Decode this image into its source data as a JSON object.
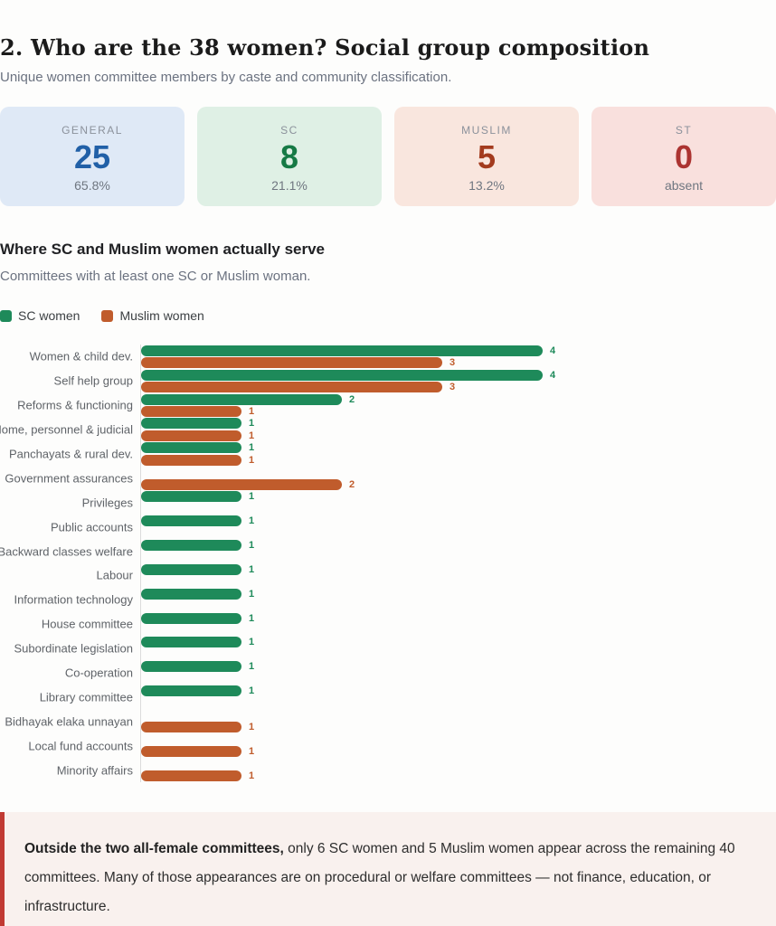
{
  "header": {
    "title": "2. Who are the 38 women? Social group composition",
    "subtitle": "Unique women committee members by caste and community classification."
  },
  "stat_cards": [
    {
      "label": "GENERAL",
      "value": "25",
      "sub": "65.8%",
      "bg": "#dfe9f6",
      "value_color": "#2160a7"
    },
    {
      "label": "SC",
      "value": "8",
      "sub": "21.1%",
      "bg": "#dff0e5",
      "value_color": "#167a45"
    },
    {
      "label": "MUSLIM",
      "value": "5",
      "sub": "13.2%",
      "bg": "#f9e6de",
      "value_color": "#a33b1e"
    },
    {
      "label": "ST",
      "value": "0",
      "sub": "absent",
      "bg": "#f9e0dd",
      "value_color": "#ac3431"
    }
  ],
  "section": {
    "heading": "Where SC and Muslim women actually serve",
    "subheading": "Committees with at least one SC or Muslim woman."
  },
  "chart_data": {
    "type": "bar",
    "orientation": "horizontal",
    "title": "Where SC and Muslim women actually serve",
    "categories": [
      "Women & child dev.",
      "Self help group",
      "Reforms & functioning",
      "Home, personnel & judicial",
      "Panchayats & rural dev.",
      "Government assurances",
      "Privileges",
      "Public accounts",
      "Backward classes welfare",
      "Labour",
      "Information technology",
      "House committee",
      "Subordinate legislation",
      "Co-operation",
      "Library committee",
      "Bidhayak elaka unnayan",
      "Local fund accounts",
      "Minority affairs"
    ],
    "series": [
      {
        "name": "SC women",
        "color": "#1e8a5a",
        "values": [
          4,
          4,
          2,
          1,
          1,
          0,
          1,
          1,
          1,
          1,
          1,
          1,
          1,
          1,
          1,
          0,
          0,
          0
        ]
      },
      {
        "name": "Muslim women",
        "color": "#c05c2c",
        "values": [
          3,
          3,
          1,
          1,
          1,
          2,
          0,
          0,
          0,
          0,
          0,
          0,
          0,
          0,
          0,
          1,
          1,
          1
        ]
      }
    ],
    "xlim": [
      0,
      4
    ],
    "grid": false,
    "value_labels": true,
    "legend_position": "top-left"
  },
  "legend": [
    {
      "label": "SC women",
      "color": "#1e8a5a"
    },
    {
      "label": "Muslim women",
      "color": "#c05c2c"
    }
  ],
  "callout": {
    "lead": "Outside the two all-female committees,",
    "text": " only 6 SC women and 5 Muslim women appear across the remaining 40 committees. Many of those appearances are on procedural or welfare committees — not finance, education, or infrastructure.",
    "border_color": "#c13a33",
    "bg": "#f9f1ee"
  }
}
